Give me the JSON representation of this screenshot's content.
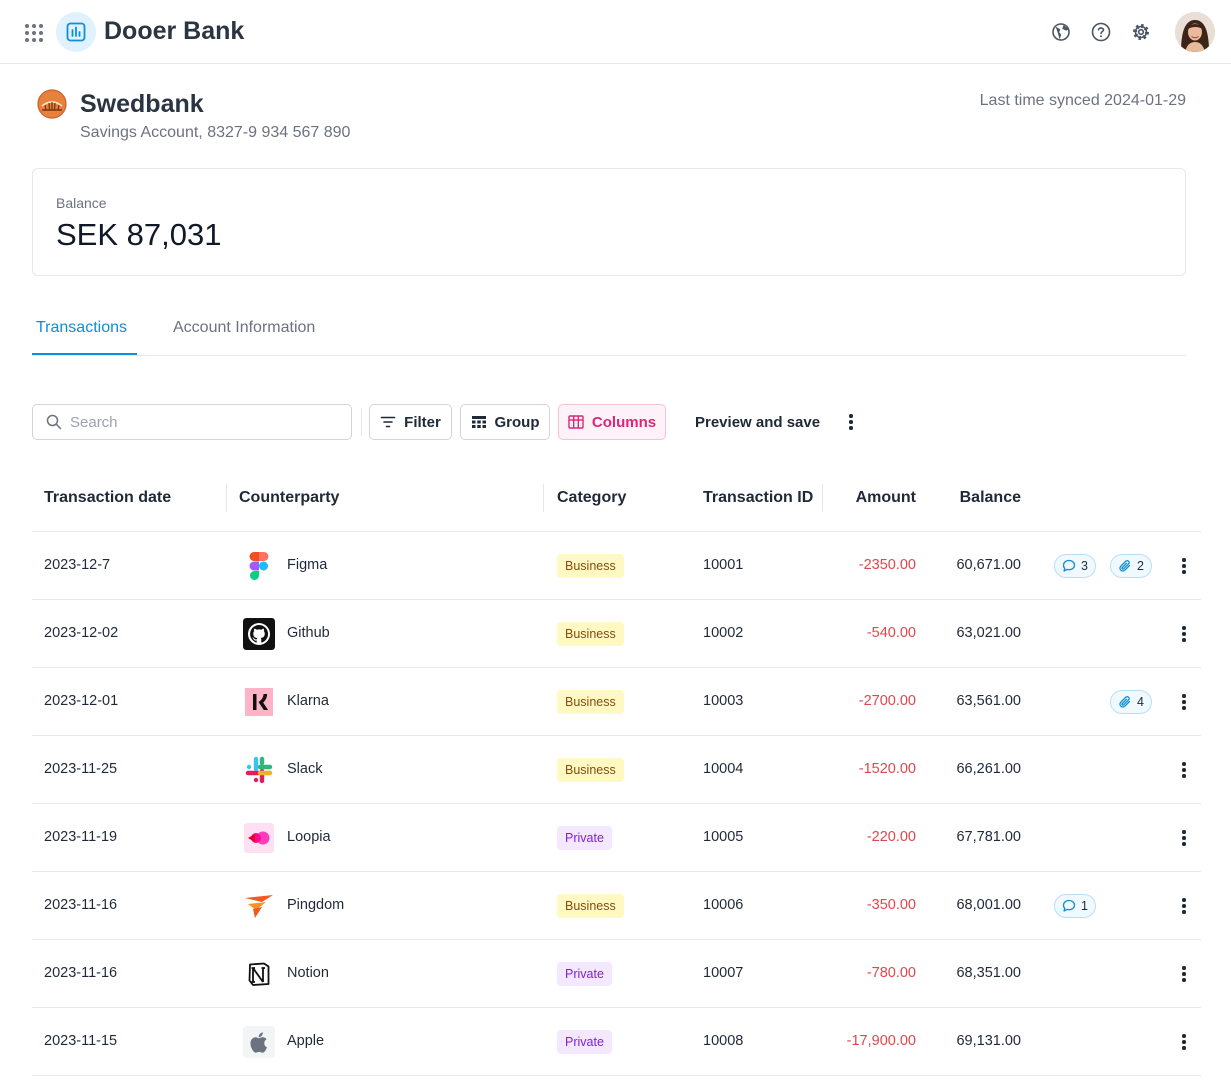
{
  "app": {
    "title": "Dooer Bank"
  },
  "account": {
    "bank_name": "Swedbank",
    "subtitle": "Savings Account, 8327-9 934 567 890",
    "last_synced": "Last time synced 2024-01-29",
    "balance_label": "Balance",
    "balance_value": "SEK 87,031"
  },
  "tabs": [
    {
      "label": "Transactions",
      "active": true
    },
    {
      "label": "Account Information",
      "active": false
    }
  ],
  "toolbar": {
    "search_placeholder": "Search",
    "search_value": "",
    "filter_label": "Filter",
    "group_label": "Group",
    "columns_label": "Columns",
    "preview_label": "Preview and save"
  },
  "table": {
    "columns": [
      "Transaction date",
      "Counterparty",
      "Category",
      "Transaction ID",
      "Amount",
      "Balance"
    ],
    "rows": [
      {
        "date": "2023-12-7",
        "counterparty": "Figma",
        "logo": "figma-logo",
        "category": "Business",
        "category_type": "business",
        "id": "10001",
        "amount": "-2350.00",
        "balance": "60,671.00",
        "comments": "3",
        "attachments": "2"
      },
      {
        "date": "2023-12-02",
        "counterparty": "Github",
        "logo": "github-logo",
        "category": "Business",
        "category_type": "business",
        "id": "10002",
        "amount": "-540.00",
        "balance": "63,021.00",
        "comments": "",
        "attachments": ""
      },
      {
        "date": "2023-12-01",
        "counterparty": "Klarna",
        "logo": "klarna-logo",
        "category": "Business",
        "category_type": "business",
        "id": "10003",
        "amount": "-2700.00",
        "balance": "63,561.00",
        "comments": "",
        "attachments": "4"
      },
      {
        "date": "2023-11-25",
        "counterparty": "Slack",
        "logo": "slack-logo",
        "category": "Business",
        "category_type": "business",
        "id": "10004",
        "amount": "-1520.00",
        "balance": "66,261.00",
        "comments": "",
        "attachments": ""
      },
      {
        "date": "2023-11-19",
        "counterparty": "Loopia",
        "logo": "loopia-logo",
        "category": "Private",
        "category_type": "private",
        "id": "10005",
        "amount": "-220.00",
        "balance": "67,781.00",
        "comments": "",
        "attachments": ""
      },
      {
        "date": "2023-11-16",
        "counterparty": "Pingdom",
        "logo": "pingdom-logo",
        "category": "Business",
        "category_type": "business",
        "id": "10006",
        "amount": "-350.00",
        "balance": "68,001.00",
        "comments": "1",
        "attachments": ""
      },
      {
        "date": "2023-11-16",
        "counterparty": "Notion",
        "logo": "notion-logo",
        "category": "Private",
        "category_type": "private",
        "id": "10007",
        "amount": "-780.00",
        "balance": "68,351.00",
        "comments": "",
        "attachments": ""
      },
      {
        "date": "2023-11-15",
        "counterparty": "Apple",
        "logo": "apple-logo",
        "category": "Private",
        "category_type": "private",
        "id": "10008",
        "amount": "-17,900.00",
        "balance": "69,131.00",
        "comments": "",
        "attachments": ""
      }
    ]
  },
  "colors": {
    "accent": "#0e8fd6",
    "negative": "#e0474c",
    "columns_active": "#db2777"
  }
}
